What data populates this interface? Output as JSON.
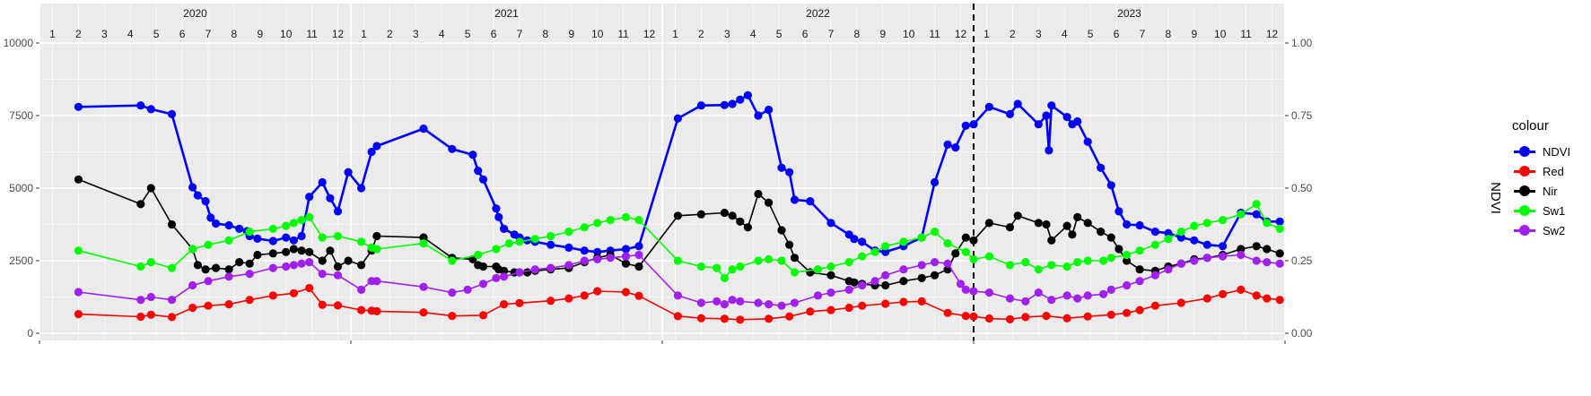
{
  "chart_data": {
    "type": "line",
    "title": "",
    "xlabel": "",
    "ylabel": "",
    "y2label": "NDVI",
    "ylim": [
      0,
      10000
    ],
    "y2lim": [
      0,
      1
    ],
    "y_ticks": [
      0,
      2500,
      5000,
      7500,
      10000
    ],
    "y_tick_labels": [
      "0",
      "2500",
      "5000",
      "7500",
      "10000"
    ],
    "y2_ticks": [
      0,
      0.25,
      0.5,
      0.75,
      1
    ],
    "y2_tick_labels": [
      "0.00",
      "0.25",
      "0.50",
      "0.75",
      "1.00"
    ],
    "x_range_months": [
      0,
      48
    ],
    "years": [
      "2020",
      "2021",
      "2022",
      "2023"
    ],
    "month_labels": [
      "1",
      "2",
      "3",
      "4",
      "5",
      "6",
      "7",
      "8",
      "9",
      "10",
      "11",
      "12"
    ],
    "reference_line_month": 36,
    "grid": true,
    "legend": {
      "title": "colour",
      "position": "right",
      "entries": [
        "NDVI",
        "Red",
        "Nir",
        "Sw1",
        "Sw2"
      ]
    },
    "series": [
      {
        "name": "NDVI",
        "axis": "right",
        "color": "#0000FF",
        "x": [
          1.5,
          3.9,
          4.3,
          5.1,
          5.9,
          6.1,
          6.4,
          6.6,
          6.8,
          7.3,
          7.7,
          8.0,
          8.1,
          8.4,
          9.0,
          9.5,
          9.8,
          10.1,
          10.4,
          10.9,
          11.2,
          11.5,
          11.9,
          12.4,
          12.8,
          13.0,
          14.8,
          15.9,
          16.7,
          16.9,
          17.1,
          17.6,
          17.7,
          17.9,
          18.3,
          18.5,
          18.8,
          19.1,
          19.7,
          20.4,
          21.0,
          21.5,
          22.0,
          22.6,
          23.1,
          24.6,
          25.5,
          26.4,
          26.7,
          27.0,
          27.3,
          27.7,
          28.1,
          28.6,
          28.9,
          29.1,
          29.7,
          30.5,
          31.2,
          31.4,
          31.7,
          32.2,
          32.6,
          33.3,
          34.0,
          34.5,
          35.0,
          35.3,
          35.7,
          36.0,
          36.6,
          37.4,
          37.7,
          38.5,
          38.8,
          38.9,
          39.0,
          39.6,
          39.8,
          40.0,
          40.4,
          40.9,
          41.3,
          41.6,
          41.9,
          42.4,
          43.0,
          43.5,
          44.0,
          44.5,
          45.0,
          45.6,
          46.3,
          46.9,
          47.3,
          47.8
        ],
        "values": [
          0.78,
          0.785,
          0.772,
          0.755,
          0.503,
          0.475,
          0.455,
          0.398,
          0.378,
          0.372,
          0.36,
          0.352,
          0.335,
          0.326,
          0.318,
          0.33,
          0.32,
          0.335,
          0.47,
          0.52,
          0.465,
          0.42,
          0.555,
          0.5,
          0.625,
          0.645,
          0.705,
          0.635,
          0.615,
          0.56,
          0.53,
          0.43,
          0.4,
          0.36,
          0.34,
          0.33,
          0.32,
          0.315,
          0.305,
          0.295,
          0.285,
          0.28,
          0.285,
          0.29,
          0.3,
          0.74,
          0.785,
          0.786,
          0.79,
          0.805,
          0.82,
          0.75,
          0.77,
          0.57,
          0.555,
          0.46,
          0.455,
          0.38,
          0.34,
          0.325,
          0.315,
          0.285,
          0.28,
          0.3,
          0.33,
          0.52,
          0.65,
          0.64,
          0.715,
          0.72,
          0.78,
          0.755,
          0.79,
          0.72,
          0.75,
          0.63,
          0.785,
          0.745,
          0.72,
          0.73,
          0.66,
          0.57,
          0.51,
          0.42,
          0.375,
          0.372,
          0.35,
          0.345,
          0.33,
          0.32,
          0.305,
          0.3,
          0.415,
          0.41,
          0.385,
          0.385
        ]
      },
      {
        "name": "Red",
        "axis": "left",
        "color": "#FF0000",
        "x": [
          1.5,
          3.9,
          4.3,
          5.1,
          5.9,
          6.5,
          7.3,
          8.1,
          9.0,
          9.8,
          10.4,
          10.9,
          11.5,
          12.4,
          12.8,
          13.0,
          14.8,
          15.9,
          17.1,
          17.9,
          18.5,
          19.7,
          20.4,
          21.0,
          21.5,
          22.6,
          23.1,
          24.6,
          25.5,
          26.4,
          27.0,
          28.1,
          28.9,
          29.7,
          30.5,
          31.2,
          31.7,
          32.6,
          33.3,
          34.0,
          35.0,
          35.7,
          36.0,
          36.6,
          37.4,
          38.0,
          38.8,
          39.6,
          40.4,
          41.3,
          41.9,
          42.4,
          43.0,
          44.0,
          45.0,
          45.6,
          46.3,
          46.9,
          47.3,
          47.8
        ],
        "values": [
          660,
          570,
          640,
          560,
          880,
          950,
          1000,
          1150,
          1300,
          1380,
          1560,
          980,
          960,
          800,
          780,
          760,
          720,
          600,
          620,
          1000,
          1040,
          1120,
          1200,
          1300,
          1450,
          1420,
          1290,
          590,
          520,
          500,
          470,
          500,
          580,
          750,
          800,
          880,
          950,
          1020,
          1080,
          1100,
          700,
          600,
          580,
          510,
          480,
          560,
          600,
          520,
          580,
          640,
          700,
          800,
          950,
          1050,
          1200,
          1350,
          1500,
          1300,
          1200,
          1150
        ]
      },
      {
        "name": "Nir",
        "axis": "left",
        "color": "#000000",
        "x": [
          1.5,
          3.9,
          4.3,
          5.1,
          5.9,
          6.1,
          6.4,
          6.8,
          7.3,
          7.7,
          8.1,
          8.4,
          9.0,
          9.5,
          9.8,
          10.1,
          10.4,
          10.9,
          11.2,
          11.5,
          11.9,
          12.4,
          12.8,
          13.0,
          14.8,
          15.9,
          16.7,
          16.9,
          17.1,
          17.6,
          17.7,
          17.9,
          18.3,
          18.5,
          18.8,
          19.1,
          19.7,
          20.4,
          21.0,
          21.5,
          22.0,
          22.6,
          23.1,
          24.6,
          25.5,
          26.4,
          26.7,
          27.0,
          27.3,
          27.7,
          28.1,
          28.6,
          28.9,
          29.1,
          29.7,
          30.5,
          31.2,
          31.4,
          31.7,
          32.2,
          32.6,
          33.3,
          34.0,
          34.5,
          35.0,
          35.3,
          35.7,
          36.0,
          36.6,
          37.4,
          37.7,
          38.5,
          38.8,
          39.0,
          39.6,
          39.8,
          40.0,
          40.4,
          40.9,
          41.3,
          41.6,
          41.9,
          42.4,
          43.0,
          43.5,
          44.0,
          44.5,
          45.0,
          45.6,
          46.3,
          46.9,
          47.3,
          47.8
        ],
        "values": [
          5300,
          4450,
          5000,
          3750,
          2900,
          2350,
          2200,
          2250,
          2200,
          2450,
          2400,
          2700,
          2750,
          2800,
          2900,
          2850,
          2800,
          2500,
          2850,
          2300,
          2500,
          2350,
          2850,
          3350,
          3300,
          2600,
          2550,
          2350,
          2300,
          2300,
          2200,
          2150,
          2100,
          2100,
          2100,
          2150,
          2200,
          2250,
          2450,
          2600,
          2700,
          2400,
          2300,
          4050,
          4100,
          4150,
          4050,
          3850,
          3650,
          4800,
          4500,
          3550,
          3050,
          2600,
          2100,
          2000,
          1800,
          1750,
          1700,
          1650,
          1650,
          1800,
          1900,
          2000,
          2200,
          2750,
          3300,
          3200,
          3800,
          3650,
          4050,
          3800,
          3750,
          3200,
          3700,
          3400,
          4000,
          3800,
          3500,
          3300,
          2900,
          2500,
          2200,
          2150,
          2300,
          2400,
          2550,
          2600,
          2700,
          2900,
          3000,
          2900,
          2750
        ]
      },
      {
        "name": "Sw1",
        "axis": "left",
        "color": "#00FF00",
        "x": [
          1.5,
          3.9,
          4.3,
          5.1,
          5.9,
          6.5,
          7.3,
          8.1,
          9.0,
          9.5,
          9.8,
          10.1,
          10.4,
          10.9,
          11.5,
          12.4,
          12.8,
          13.0,
          14.8,
          15.9,
          16.9,
          17.6,
          18.1,
          18.5,
          19.1,
          19.7,
          20.4,
          21.0,
          21.5,
          22.0,
          22.6,
          23.1,
          24.6,
          25.5,
          26.1,
          26.4,
          26.7,
          27.0,
          27.7,
          28.1,
          28.6,
          29.1,
          30.0,
          30.5,
          31.2,
          31.7,
          32.2,
          32.6,
          33.3,
          34.0,
          34.5,
          35.0,
          35.7,
          36.0,
          36.6,
          37.4,
          38.0,
          38.5,
          39.0,
          39.6,
          40.0,
          40.4,
          41.0,
          41.3,
          41.9,
          42.4,
          43.0,
          43.5,
          44.0,
          44.5,
          45.0,
          45.6,
          46.3,
          46.9,
          47.3,
          47.8
        ],
        "values": [
          2850,
          2300,
          2450,
          2250,
          2900,
          3050,
          3200,
          3500,
          3600,
          3700,
          3800,
          3900,
          4000,
          3300,
          3350,
          3150,
          2950,
          2900,
          3100,
          2500,
          2700,
          2900,
          3100,
          3150,
          3250,
          3350,
          3500,
          3650,
          3800,
          3900,
          4000,
          3900,
          2500,
          2300,
          2250,
          1900,
          2200,
          2300,
          2500,
          2550,
          2500,
          2100,
          2200,
          2300,
          2450,
          2650,
          2800,
          3000,
          3150,
          3300,
          3500,
          3100,
          2800,
          2550,
          2650,
          2350,
          2450,
          2200,
          2350,
          2300,
          2450,
          2500,
          2500,
          2600,
          2700,
          2850,
          3050,
          3250,
          3500,
          3700,
          3800,
          3900,
          4100,
          4450,
          3800,
          3600
        ]
      },
      {
        "name": "Sw2",
        "axis": "left",
        "color": "#A020F0",
        "x": [
          1.5,
          3.9,
          4.3,
          5.1,
          5.9,
          6.5,
          7.3,
          8.1,
          9.0,
          9.5,
          9.8,
          10.1,
          10.4,
          10.9,
          11.5,
          12.4,
          12.8,
          13.0,
          14.8,
          15.9,
          16.5,
          17.1,
          17.6,
          17.9,
          18.5,
          19.1,
          19.7,
          20.4,
          21.0,
          21.5,
          22.0,
          22.6,
          23.1,
          24.6,
          25.5,
          26.1,
          26.4,
          26.7,
          27.0,
          27.7,
          28.1,
          28.6,
          29.1,
          30.0,
          30.5,
          31.2,
          31.7,
          32.2,
          32.6,
          33.3,
          34.0,
          34.5,
          35.0,
          35.5,
          35.7,
          36.0,
          36.6,
          37.4,
          38.0,
          38.5,
          39.0,
          39.6,
          40.0,
          40.4,
          41.0,
          41.3,
          41.9,
          42.4,
          43.0,
          43.5,
          44.0,
          44.5,
          45.0,
          45.6,
          46.3,
          46.9,
          47.3,
          47.8
        ],
        "values": [
          1420,
          1150,
          1250,
          1150,
          1650,
          1800,
          1950,
          2050,
          2250,
          2300,
          2350,
          2400,
          2450,
          2050,
          2000,
          1500,
          1800,
          1800,
          1600,
          1400,
          1500,
          1700,
          1900,
          1950,
          2100,
          2200,
          2250,
          2350,
          2500,
          2550,
          2600,
          2650,
          2700,
          1300,
          1050,
          1100,
          1000,
          1150,
          1100,
          1050,
          1000,
          950,
          1050,
          1300,
          1400,
          1500,
          1650,
          1800,
          2000,
          2200,
          2350,
          2450,
          2400,
          1700,
          1500,
          1450,
          1400,
          1200,
          1100,
          1400,
          1150,
          1300,
          1200,
          1300,
          1350,
          1500,
          1650,
          1800,
          2000,
          2200,
          2400,
          2500,
          2600,
          2650,
          2700,
          2500,
          2450,
          2400
        ]
      }
    ]
  }
}
